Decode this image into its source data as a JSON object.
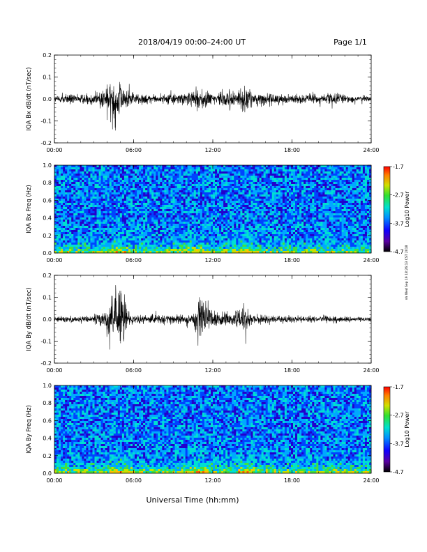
{
  "header": {
    "title": "2018/04/19   00:00–24:00 UT",
    "page": "Page 1/1"
  },
  "side_note": "nh Wed Sep 19 18:26:13 CST 2018",
  "xlabel": "Universal Time (hh:mm)",
  "colors": {
    "trace": "#000000",
    "colormap": [
      "#2a0060",
      "#2200cc",
      "#0044ff",
      "#00a8ff",
      "#00e0d0",
      "#40e040",
      "#c8e000",
      "#ffc000",
      "#ff6000",
      "#ff0000"
    ]
  },
  "chart_data": [
    {
      "type": "line",
      "panel": "Bx dB/dt",
      "ylabel": "IQA Bx dB/dt (nT/sec)",
      "xlim": [
        0,
        24
      ],
      "ylim": [
        -0.2,
        0.2
      ],
      "xticks": [
        "00:00",
        "06:00",
        "12:00",
        "18:00",
        "24:00"
      ],
      "yticks": [
        "-0.2",
        "-0.1",
        "0.0",
        "0.1",
        "0.2"
      ],
      "series": [
        {
          "x_hours": [
            0,
            1,
            2,
            3,
            3.8,
            4.2,
            4.5,
            4.8,
            5.1,
            5.5,
            6,
            7,
            8,
            9,
            10,
            10.5,
            11,
            11.5,
            12,
            13,
            13.5,
            14,
            14.5,
            15,
            16,
            17,
            18,
            19,
            20,
            21,
            22,
            23,
            24
          ],
          "envelope": [
            0.015,
            0.025,
            0.02,
            0.03,
            0.05,
            0.07,
            0.1,
            0.11,
            0.08,
            0.04,
            0.03,
            0.02,
            0.02,
            0.025,
            0.03,
            0.04,
            0.05,
            0.04,
            0.03,
            0.035,
            0.05,
            0.04,
            0.07,
            0.03,
            0.025,
            0.025,
            0.02,
            0.02,
            0.02,
            0.03,
            0.02,
            0.015,
            0.015
          ]
        }
      ]
    },
    {
      "type": "heatmap",
      "panel": "Bx spectrogram",
      "ylabel": "IQA Bx Freq (Hz)",
      "xlim": [
        0,
        24
      ],
      "ylim": [
        0,
        1
      ],
      "xticks": [
        "00:00",
        "06:00",
        "12:00",
        "18:00",
        "24:00"
      ],
      "yticks": [
        "0.0",
        "0.2",
        "0.4",
        "0.6",
        "0.8",
        "1.0"
      ],
      "colorbar": {
        "label": "Log10 Power",
        "ticks": [
          "-1.7",
          "-2.7",
          "-3.7",
          "-4.7"
        ],
        "range": [
          -4.7,
          -1.7
        ]
      }
    },
    {
      "type": "line",
      "panel": "By dB/dt",
      "ylabel": "IQA By dB/dt (nT/sec)",
      "xlim": [
        0,
        24
      ],
      "ylim": [
        -0.2,
        0.2
      ],
      "xticks": [
        "00:00",
        "06:00",
        "12:00",
        "18:00",
        "24:00"
      ],
      "yticks": [
        "-0.2",
        "-0.1",
        "0.0",
        "0.1",
        "0.2"
      ],
      "series": [
        {
          "x_hours": [
            0,
            1,
            2,
            3,
            3.8,
            4.2,
            4.5,
            4.8,
            5.1,
            5.5,
            6,
            7,
            8,
            9,
            10,
            10.5,
            11,
            11.3,
            11.6,
            12,
            13,
            14,
            14.5,
            15,
            16,
            17,
            18,
            19,
            20,
            21,
            22,
            23,
            24
          ],
          "envelope": [
            0.01,
            0.015,
            0.015,
            0.02,
            0.04,
            0.1,
            0.13,
            0.12,
            0.2,
            0.04,
            0.02,
            0.02,
            0.025,
            0.02,
            0.025,
            0.03,
            0.12,
            0.09,
            0.05,
            0.04,
            0.03,
            0.04,
            0.06,
            0.02,
            0.02,
            0.015,
            0.015,
            0.015,
            0.015,
            0.015,
            0.015,
            0.01,
            0.01
          ]
        }
      ]
    },
    {
      "type": "heatmap",
      "panel": "By spectrogram",
      "ylabel": "IQA By Freq (Hz)",
      "xlim": [
        0,
        24
      ],
      "ylim": [
        0,
        1
      ],
      "xticks": [
        "00:00",
        "06:00",
        "12:00",
        "18:00",
        "24:00"
      ],
      "yticks": [
        "0.0",
        "0.2",
        "0.4",
        "0.6",
        "0.8",
        "1.0"
      ],
      "colorbar": {
        "label": "Log10 Power",
        "ticks": [
          "-1.7",
          "-2.7",
          "-3.7",
          "-4.7"
        ],
        "range": [
          -4.7,
          -1.7
        ]
      }
    }
  ]
}
